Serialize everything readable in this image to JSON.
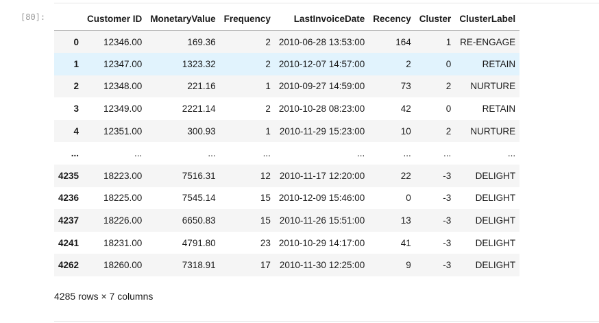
{
  "cell": {
    "prompt": "[80]:"
  },
  "dataframe": {
    "columns": [
      "",
      "Customer ID",
      "MonetaryValue",
      "Frequency",
      "LastInvoiceDate",
      "Recency",
      "Cluster",
      "ClusterLabel"
    ],
    "rows": [
      {
        "index": "0",
        "cells": [
          "12346.00",
          "169.36",
          "2",
          "2010-06-28 13:53:00",
          "164",
          "1",
          "RE-ENGAGE"
        ]
      },
      {
        "index": "1",
        "cells": [
          "12347.00",
          "1323.32",
          "2",
          "2010-12-07 14:57:00",
          "2",
          "0",
          "RETAIN"
        ]
      },
      {
        "index": "2",
        "cells": [
          "12348.00",
          "221.16",
          "1",
          "2010-09-27 14:59:00",
          "73",
          "2",
          "NURTURE"
        ]
      },
      {
        "index": "3",
        "cells": [
          "12349.00",
          "2221.14",
          "2",
          "2010-10-28 08:23:00",
          "42",
          "0",
          "RETAIN"
        ]
      },
      {
        "index": "4",
        "cells": [
          "12351.00",
          "300.93",
          "1",
          "2010-11-29 15:23:00",
          "10",
          "2",
          "NURTURE"
        ]
      },
      {
        "index": "...",
        "cells": [
          "...",
          "...",
          "...",
          "...",
          "...",
          "...",
          "..."
        ]
      },
      {
        "index": "4235",
        "cells": [
          "18223.00",
          "7516.31",
          "12",
          "2010-11-17 12:20:00",
          "22",
          "-3",
          "DELIGHT"
        ]
      },
      {
        "index": "4236",
        "cells": [
          "18225.00",
          "7545.14",
          "15",
          "2010-12-09 15:46:00",
          "0",
          "-3",
          "DELIGHT"
        ]
      },
      {
        "index": "4237",
        "cells": [
          "18226.00",
          "6650.83",
          "15",
          "2010-11-26 15:51:00",
          "13",
          "-3",
          "DELIGHT"
        ]
      },
      {
        "index": "4241",
        "cells": [
          "18231.00",
          "4791.80",
          "23",
          "2010-10-29 14:17:00",
          "41",
          "-3",
          "DELIGHT"
        ]
      },
      {
        "index": "4262",
        "cells": [
          "18260.00",
          "7318.91",
          "17",
          "2010-11-30 12:25:00",
          "9",
          "-3",
          "DELIGHT"
        ]
      }
    ],
    "hovered_row": 1,
    "summary": "4285 rows × 7 columns"
  },
  "colors": {
    "stripe": "#f5f5f5",
    "hover": "#e1f3fd",
    "prompt": "#999999"
  }
}
